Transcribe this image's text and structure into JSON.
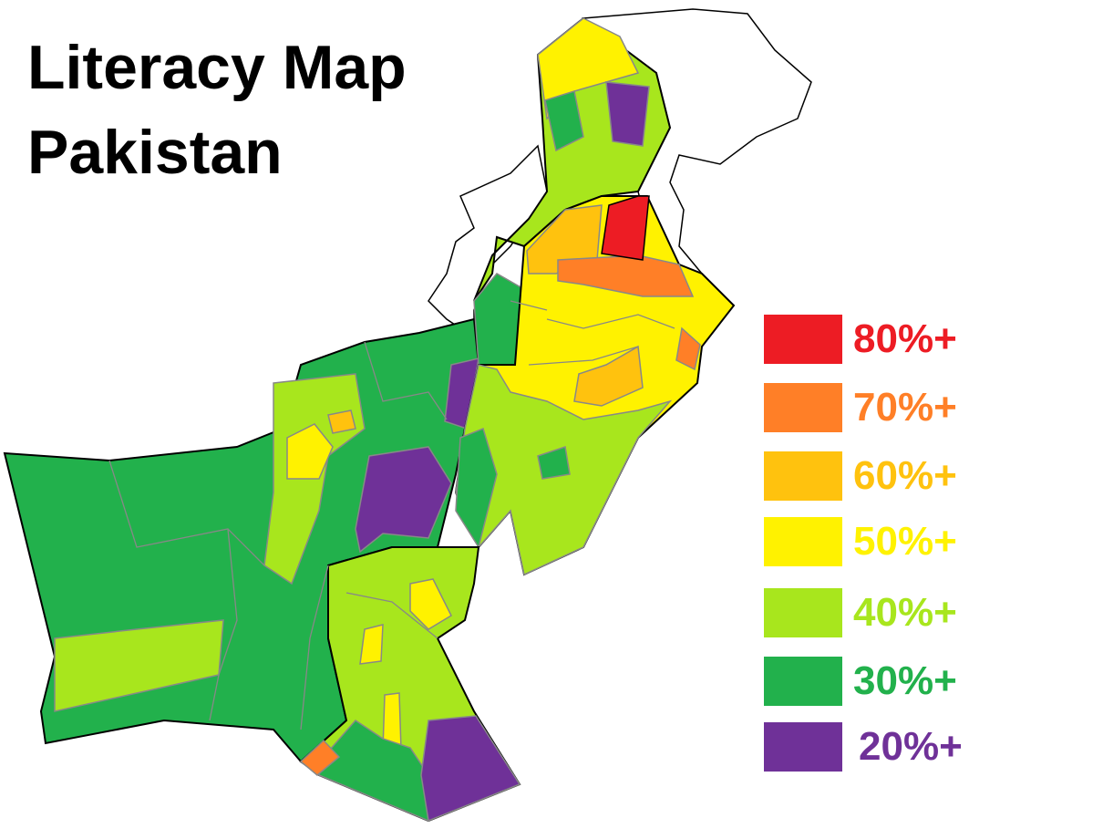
{
  "title": {
    "line1": "Literacy Map",
    "line2": "Pakistan"
  },
  "legend": [
    {
      "label": "80%+",
      "color": "#ED1C24"
    },
    {
      "label": "70%+",
      "color": "#FF7F27"
    },
    {
      "label": "60%+",
      "color": "#FFC20E"
    },
    {
      "label": "50%+",
      "color": "#FFF200"
    },
    {
      "label": "40%+",
      "color": "#A8E61D"
    },
    {
      "label": "30%+",
      "color": "#22B14C"
    },
    {
      "label": "20%+",
      "color": "#6F3198"
    }
  ],
  "colors": {
    "border": "#000000",
    "district_border": "#808080",
    "disputed_fill": "#FFFFFF"
  }
}
